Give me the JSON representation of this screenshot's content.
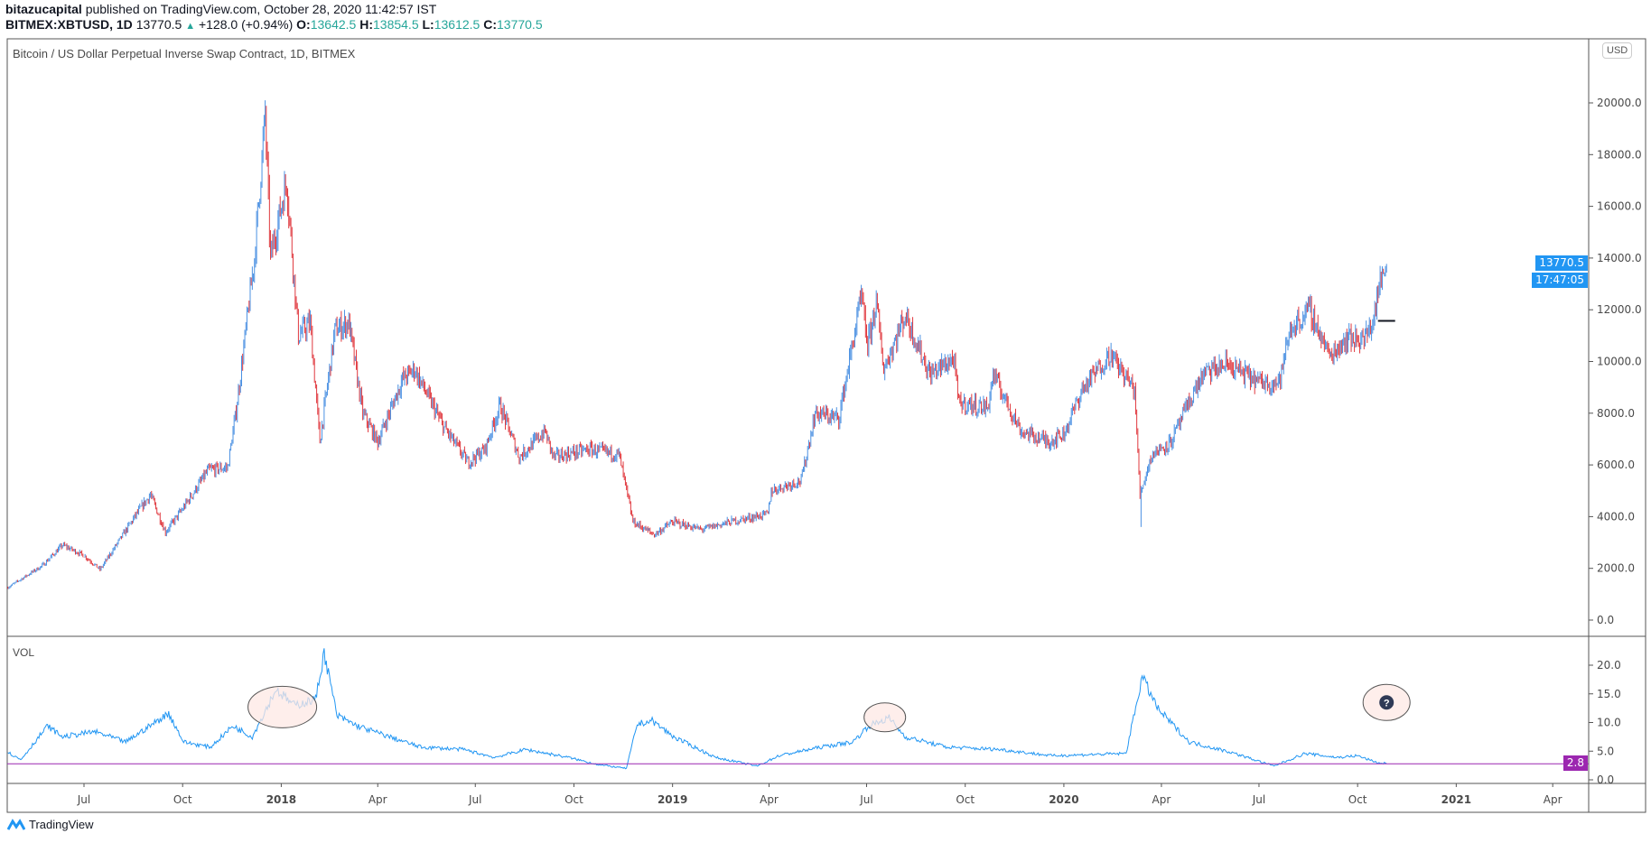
{
  "header": {
    "publisher": "bitazucapital",
    "published_text": "published on TradingView.com, October 28, 2020 11:42:57 IST",
    "symbol": "BITMEX:XBTUSD, 1D",
    "last": "13770.5",
    "change": "+128.0 (+0.94%)",
    "open_label": "O:",
    "open": "13642.5",
    "high_label": "H:",
    "high": "13854.5",
    "low_label": "L:",
    "low": "13612.5",
    "close_label": "C:",
    "close": "13770.5"
  },
  "chart_title": "Bitcoin / US Dollar Perpetual Inverse Swap Contract, 1D, BITMEX",
  "currency_button": "USD",
  "price_tag": "13770.5",
  "countdown_tag": "17:47:05",
  "volume_pane": {
    "label": "VOL",
    "level_tag": "2.8",
    "level": 2.8
  },
  "logo_text": "TradingView",
  "colors": {
    "up": "#4a90e2",
    "down": "#e0383e",
    "accent": "#2196f3",
    "level": "#9c27b0",
    "annotation_fill": "#fde8e4"
  },
  "chart_data": [
    {
      "type": "candlestick",
      "yaxis_ticks": [
        "0.0",
        "2000.0",
        "4000.0",
        "6000.0",
        "8000.0",
        "10000.0",
        "12000.0",
        "14000.0",
        "16000.0",
        "18000.0",
        "20000.0"
      ],
      "ylim": [
        -500,
        22500
      ],
      "xaxis_ticks": [
        {
          "date": "2017-07-01",
          "label": "Jul"
        },
        {
          "date": "2017-10-01",
          "label": "Oct"
        },
        {
          "date": "2018-01-01",
          "label": "2018",
          "bold": true
        },
        {
          "date": "2018-04-01",
          "label": "Apr"
        },
        {
          "date": "2018-07-01",
          "label": "Jul"
        },
        {
          "date": "2018-10-01",
          "label": "Oct"
        },
        {
          "date": "2019-01-01",
          "label": "2019",
          "bold": true
        },
        {
          "date": "2019-04-01",
          "label": "Apr"
        },
        {
          "date": "2019-07-01",
          "label": "Jul"
        },
        {
          "date": "2019-10-01",
          "label": "Oct"
        },
        {
          "date": "2020-01-01",
          "label": "2020",
          "bold": true
        },
        {
          "date": "2020-04-01",
          "label": "Apr"
        },
        {
          "date": "2020-07-01",
          "label": "Jul"
        },
        {
          "date": "2020-10-01",
          "label": "Oct"
        },
        {
          "date": "2021-01-01",
          "label": "2021",
          "bold": true
        },
        {
          "date": "2021-04-01",
          "label": "Apr"
        }
      ],
      "close_path": [
        [
          "2017-04-21",
          1260
        ],
        [
          "2017-05-23",
          2100
        ],
        [
          "2017-06-11",
          2900
        ],
        [
          "2017-07-01",
          2500
        ],
        [
          "2017-07-16",
          1950
        ],
        [
          "2017-08-19",
          4100
        ],
        [
          "2017-09-01",
          4850
        ],
        [
          "2017-09-15",
          3400
        ],
        [
          "2017-10-01",
          4300
        ],
        [
          "2017-10-25",
          5800
        ],
        [
          "2017-11-12",
          5900
        ],
        [
          "2017-11-20",
          8100
        ],
        [
          "2017-12-07",
          14000
        ],
        [
          "2017-12-17",
          19500
        ],
        [
          "2017-12-22",
          14000
        ],
        [
          "2018-01-06",
          17000
        ],
        [
          "2018-01-17",
          11000
        ],
        [
          "2018-01-28",
          11500
        ],
        [
          "2018-02-06",
          6900
        ],
        [
          "2018-02-20",
          11200
        ],
        [
          "2018-03-05",
          11500
        ],
        [
          "2018-03-18",
          8000
        ],
        [
          "2018-04-01",
          6900
        ],
        [
          "2018-04-24",
          9300
        ],
        [
          "2018-05-05",
          9700
        ],
        [
          "2018-06-01",
          7500
        ],
        [
          "2018-06-24",
          6100
        ],
        [
          "2018-07-10",
          6600
        ],
        [
          "2018-07-24",
          8300
        ],
        [
          "2018-08-11",
          6300
        ],
        [
          "2018-09-04",
          7300
        ],
        [
          "2018-09-12",
          6300
        ],
        [
          "2018-10-15",
          6600
        ],
        [
          "2018-11-12",
          6400
        ],
        [
          "2018-11-19",
          5000
        ],
        [
          "2018-11-25",
          3800
        ],
        [
          "2018-12-15",
          3300
        ],
        [
          "2019-01-01",
          3800
        ],
        [
          "2019-01-28",
          3500
        ],
        [
          "2019-02-24",
          3800
        ],
        [
          "2019-03-31",
          4100
        ],
        [
          "2019-04-03",
          5000
        ],
        [
          "2019-05-01",
          5400
        ],
        [
          "2019-05-14",
          8000
        ],
        [
          "2019-06-05",
          7800
        ],
        [
          "2019-06-26",
          12500
        ],
        [
          "2019-07-02",
          10600
        ],
        [
          "2019-07-10",
          12300
        ],
        [
          "2019-07-17",
          9700
        ],
        [
          "2019-08-06",
          11800
        ],
        [
          "2019-08-29",
          9500
        ],
        [
          "2019-09-20",
          10100
        ],
        [
          "2019-09-25",
          8400
        ],
        [
          "2019-10-22",
          8200
        ],
        [
          "2019-10-27",
          9500
        ],
        [
          "2019-11-22",
          7300
        ],
        [
          "2019-12-18",
          6900
        ],
        [
          "2020-01-01",
          7200
        ],
        [
          "2020-01-18",
          8900
        ],
        [
          "2020-02-13",
          10300
        ],
        [
          "2020-03-07",
          8900
        ],
        [
          "2020-03-12",
          4800
        ],
        [
          "2020-03-13",
          5000
        ],
        [
          "2020-03-23",
          6400
        ],
        [
          "2020-04-10",
          6900
        ],
        [
          "2020-04-30",
          8700
        ],
        [
          "2020-05-10",
          9500
        ],
        [
          "2020-06-01",
          9900
        ],
        [
          "2020-07-01",
          9200
        ],
        [
          "2020-07-20",
          9200
        ],
        [
          "2020-07-30",
          11200
        ],
        [
          "2020-08-17",
          12000
        ],
        [
          "2020-09-05",
          10200
        ],
        [
          "2020-09-20",
          10900
        ],
        [
          "2020-10-08",
          10900
        ],
        [
          "2020-10-15",
          11500
        ],
        [
          "2020-10-21",
          12900
        ],
        [
          "2020-10-28",
          13770.5
        ]
      ],
      "extreme_wicks": [
        [
          "2017-12-17",
          20100
        ],
        [
          "2020-03-13",
          3600
        ]
      ],
      "horizontal_line": {
        "price": 11570,
        "from": "2020-10-20",
        "to": "2020-11-05"
      }
    },
    {
      "type": "line",
      "name": "VOL",
      "yaxis_ticks": [
        "0.0",
        "5.0",
        "10.0",
        "15.0",
        "20.0"
      ],
      "ylim": [
        -0.5,
        24
      ],
      "points": [
        [
          "2017-04-21",
          4.8
        ],
        [
          "2017-05-03",
          3.5
        ],
        [
          "2017-05-28",
          9.4
        ],
        [
          "2017-06-11",
          7.5
        ],
        [
          "2017-07-11",
          8.4
        ],
        [
          "2017-08-09",
          6.6
        ],
        [
          "2017-09-18",
          11.6
        ],
        [
          "2017-10-02",
          6.6
        ],
        [
          "2017-10-27",
          5.7
        ],
        [
          "2017-11-17",
          9.4
        ],
        [
          "2017-12-05",
          7.5
        ],
        [
          "2017-12-27",
          15.8
        ],
        [
          "2018-01-13",
          13
        ],
        [
          "2018-02-02",
          14
        ],
        [
          "2018-02-10",
          22.2
        ],
        [
          "2018-02-22",
          11.2
        ],
        [
          "2018-03-13",
          9.4
        ],
        [
          "2018-04-12",
          7.5
        ],
        [
          "2018-05-11",
          5.7
        ],
        [
          "2018-06-20",
          5.3
        ],
        [
          "2018-07-19",
          3.9
        ],
        [
          "2018-08-17",
          5.3
        ],
        [
          "2018-09-26",
          3.9
        ],
        [
          "2018-10-25",
          2.6
        ],
        [
          "2018-11-19",
          2.0
        ],
        [
          "2018-11-29",
          9.7
        ],
        [
          "2018-12-13",
          10.3
        ],
        [
          "2019-01-02",
          7.5
        ],
        [
          "2019-02-10",
          3.9
        ],
        [
          "2019-03-21",
          2.4
        ],
        [
          "2019-04-10",
          4.2
        ],
        [
          "2019-05-19",
          5.7
        ],
        [
          "2019-06-18",
          6.6
        ],
        [
          "2019-07-03",
          9.4
        ],
        [
          "2019-07-22",
          10.8
        ],
        [
          "2019-08-06",
          7.5
        ],
        [
          "2019-09-14",
          5.7
        ],
        [
          "2019-11-02",
          5.3
        ],
        [
          "2019-12-21",
          4.2
        ],
        [
          "2020-02-28",
          4.6
        ],
        [
          "2020-03-14",
          18
        ],
        [
          "2020-03-29",
          12.3
        ],
        [
          "2020-04-27",
          6.6
        ],
        [
          "2020-06-05",
          4.8
        ],
        [
          "2020-07-15",
          2.4
        ],
        [
          "2020-08-13",
          4.6
        ],
        [
          "2020-09-12",
          3.9
        ],
        [
          "2020-10-01",
          4.2
        ],
        [
          "2020-10-21",
          2.9
        ],
        [
          "2020-10-28",
          2.9
        ]
      ],
      "annotations": [
        {
          "shape": "ellipse",
          "center": [
            "2018-01-02",
            12.7
          ]
        },
        {
          "shape": "ellipse",
          "center": [
            "2019-07-18",
            10.9
          ]
        },
        {
          "shape": "ellipse",
          "center": [
            "2020-10-28",
            13.5
          ],
          "icon": "question-icon"
        }
      ]
    }
  ]
}
